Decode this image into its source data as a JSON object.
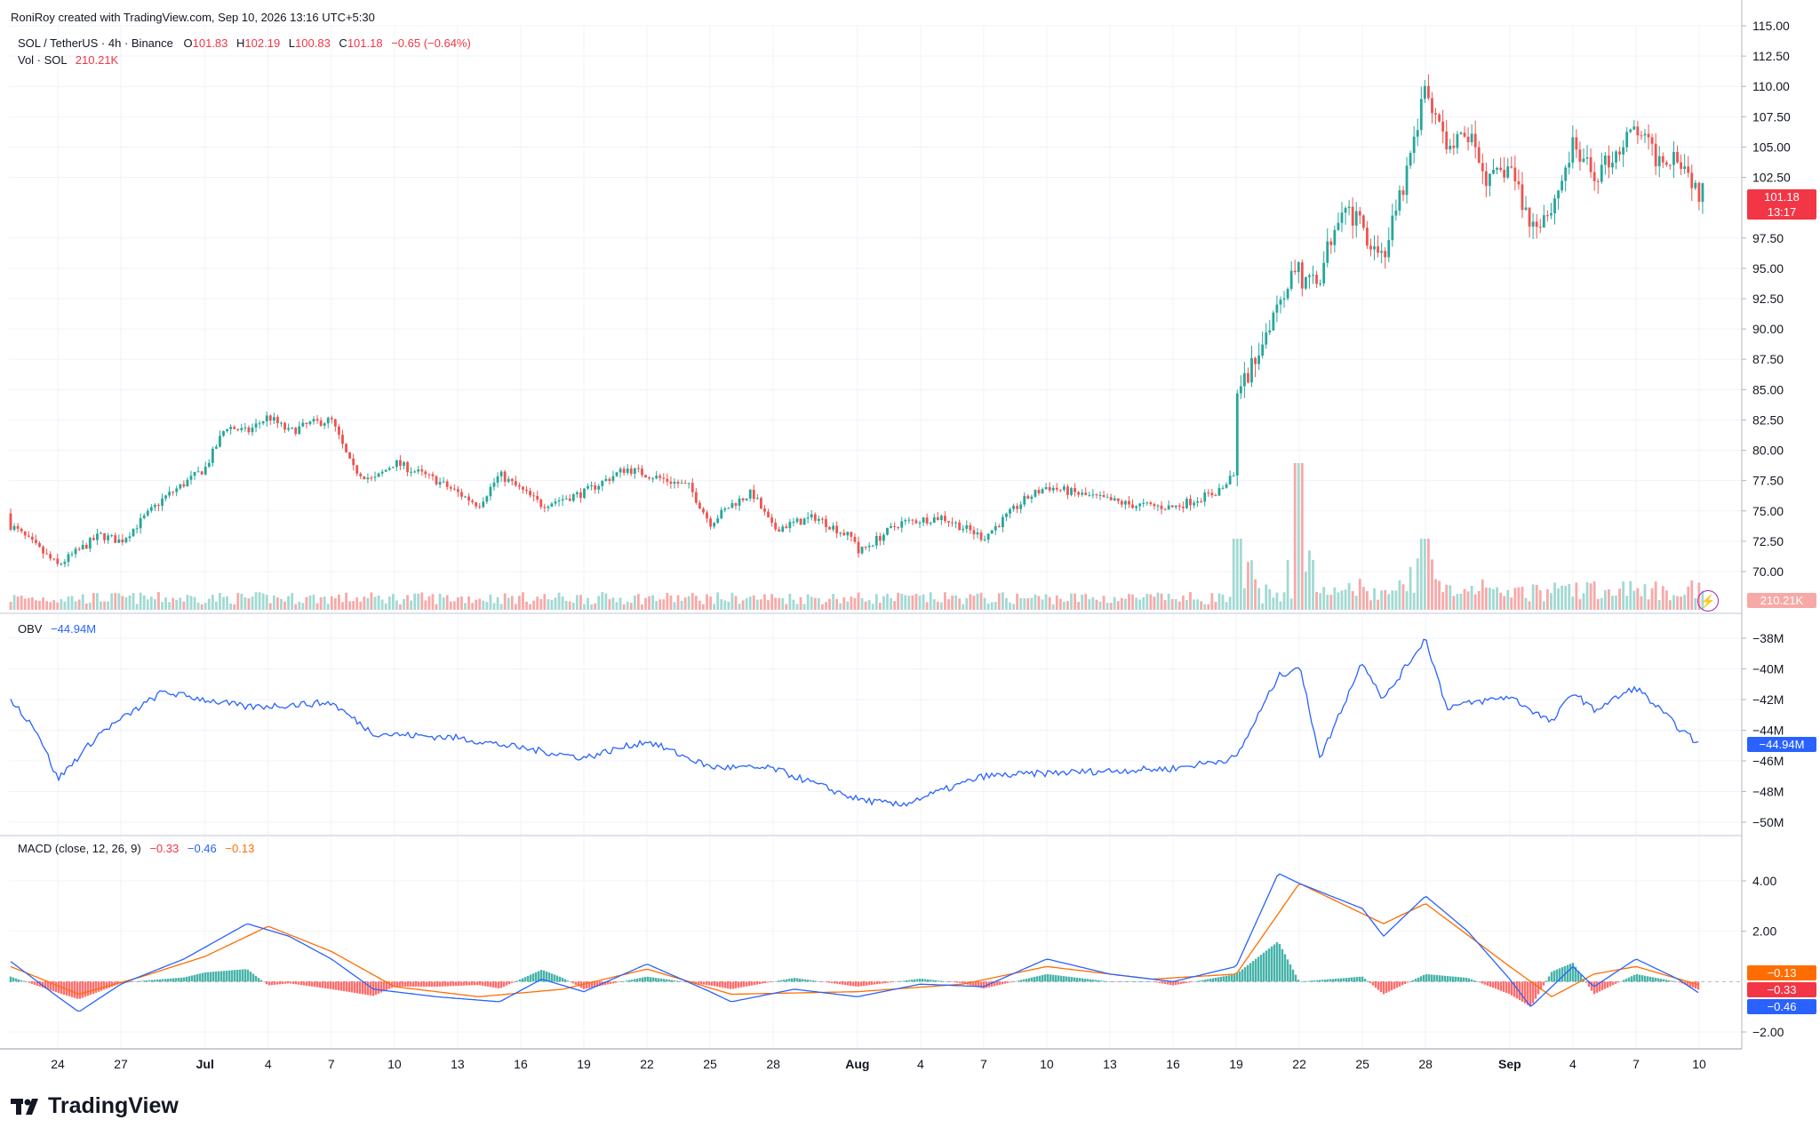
{
  "header": {
    "credit": "RoniRoy created with TradingView.com, Sep 10, 2026 13:16 UTC+5:30",
    "symbol": "SOL / TetherUS · 4h · Binance",
    "ohlc": {
      "o_label": "O",
      "o": "101.83",
      "h_label": "H",
      "h": "102.19",
      "l_label": "L",
      "l": "100.83",
      "c_label": "C",
      "c": "101.18",
      "chg": "−0.65 (−0.64%)"
    },
    "vol_label": "Vol · SOL",
    "vol_value": "210.21K"
  },
  "obv": {
    "label": "OBV",
    "value": "−44.94M"
  },
  "macd": {
    "label": "MACD (close, 12, 26, 9)",
    "hist": "−0.33",
    "macd": "−0.46",
    "signal": "−0.13"
  },
  "price_axis": {
    "ticks": [
      "115.00",
      "112.50",
      "110.00",
      "107.50",
      "105.00",
      "102.50",
      "97.50",
      "95.00",
      "92.50",
      "90.00",
      "87.50",
      "85.00",
      "82.50",
      "80.00",
      "77.50",
      "75.00",
      "72.50",
      "70.00"
    ]
  },
  "price_marker": {
    "value": "101.18",
    "countdown": "13:17"
  },
  "vol_marker": "210.21K",
  "obv_axis": {
    "ticks": [
      "−38M",
      "−40M",
      "−42M",
      "−44M",
      "−46M",
      "−48M",
      "−50M"
    ]
  },
  "obv_marker": "−44.94M",
  "macd_axis": {
    "ticks": [
      "4.00",
      "2.00",
      "−2.00"
    ]
  },
  "macd_markers": [
    "−0.13",
    "−0.33",
    "−0.46"
  ],
  "time_axis": {
    "labels": [
      "24",
      "27",
      "Jul",
      "4",
      "7",
      "10",
      "13",
      "16",
      "19",
      "22",
      "25",
      "28",
      "Aug",
      "4",
      "7",
      "10",
      "13",
      "16",
      "19",
      "22",
      "25",
      "28",
      "Sep",
      "4",
      "7",
      "10"
    ]
  },
  "brand": "TradingView",
  "colors": {
    "up": "#26a69a",
    "down": "#ef5350",
    "obv": "#2962ff",
    "macd": "#2962ff",
    "signal": "#ff6d00",
    "grid": "#f0f3fa"
  },
  "chart_data": {
    "type": "candlestick",
    "title": "SOL / TetherUS · 4h · Binance",
    "ylim": [
      68.5,
      115.5
    ],
    "anchors": [
      {
        "date": "Jun 21",
        "price": 74.8
      },
      {
        "date": "Jun 22",
        "price": 73.5
      },
      {
        "date": "Jun 24",
        "price": 70.5
      },
      {
        "date": "Jun 26",
        "price": 73.0
      },
      {
        "date": "Jun 27",
        "price": 72.5
      },
      {
        "date": "Jun 29",
        "price": 76.0
      },
      {
        "date": "Jul 1",
        "price": 78.5
      },
      {
        "date": "Jul 2",
        "price": 82.0
      },
      {
        "date": "Jul 3",
        "price": 81.5
      },
      {
        "date": "Jul 4",
        "price": 82.8
      },
      {
        "date": "Jul 5",
        "price": 81.5
      },
      {
        "date": "Jul 6",
        "price": 82.2
      },
      {
        "date": "Jul 7",
        "price": 82.5
      },
      {
        "date": "Jul 8",
        "price": 78.5
      },
      {
        "date": "Jul 9",
        "price": 77.5
      },
      {
        "date": "Jul 10",
        "price": 79.0
      },
      {
        "date": "Jul 12",
        "price": 77.5
      },
      {
        "date": "Jul 14",
        "price": 75.5
      },
      {
        "date": "Jul 15",
        "price": 78.0
      },
      {
        "date": "Jul 17",
        "price": 75.5
      },
      {
        "date": "Jul 19",
        "price": 76.5
      },
      {
        "date": "Jul 21",
        "price": 78.5
      },
      {
        "date": "Jul 22",
        "price": 78.0
      },
      {
        "date": "Jul 24",
        "price": 77.0
      },
      {
        "date": "Jul 25",
        "price": 74.0
      },
      {
        "date": "Jul 26",
        "price": 75.5
      },
      {
        "date": "Jul 27",
        "price": 76.5
      },
      {
        "date": "Jul 28",
        "price": 73.5
      },
      {
        "date": "Jul 30",
        "price": 74.5
      },
      {
        "date": "Aug 1",
        "price": 72.5
      },
      {
        "date": "Aug 1",
        "price": 71.5
      },
      {
        "date": "Aug 3",
        "price": 74.0
      },
      {
        "date": "Aug 5",
        "price": 74.5
      },
      {
        "date": "Aug 7",
        "price": 72.8
      },
      {
        "date": "Aug 9",
        "price": 76.0
      },
      {
        "date": "Aug 10",
        "price": 77.0
      },
      {
        "date": "Aug 12",
        "price": 76.2
      },
      {
        "date": "Aug 14",
        "price": 75.5
      },
      {
        "date": "Aug 16",
        "price": 75.3
      },
      {
        "date": "Aug 18",
        "price": 76.5
      },
      {
        "date": "Aug 19",
        "price": 78.0
      },
      {
        "date": "Aug 19",
        "price": 84.0
      },
      {
        "date": "Aug 20",
        "price": 88.0
      },
      {
        "date": "Aug 21",
        "price": 92.5
      },
      {
        "date": "Aug 22",
        "price": 95.5
      },
      {
        "date": "Aug 22",
        "price": 93.5
      },
      {
        "date": "Aug 23",
        "price": 94.5
      },
      {
        "date": "Aug 24",
        "price": 100.5
      },
      {
        "date": "Aug 26",
        "price": 96.0
      },
      {
        "date": "Aug 27",
        "price": 102.0
      },
      {
        "date": "Aug 28",
        "price": 110.0
      },
      {
        "date": "Aug 29",
        "price": 104.5
      },
      {
        "date": "Aug 30",
        "price": 106.0
      },
      {
        "date": "Aug 31",
        "price": 102.0
      },
      {
        "date": "Sep 1",
        "price": 103.5
      },
      {
        "date": "Sep 2",
        "price": 98.5
      },
      {
        "date": "Sep 3",
        "price": 100.0
      },
      {
        "date": "Sep 4",
        "price": 105.0
      },
      {
        "date": "Sep 5",
        "price": 102.5
      },
      {
        "date": "Sep 6",
        "price": 104.5
      },
      {
        "date": "Sep 7",
        "price": 106.5
      },
      {
        "date": "Sep 8",
        "price": 104.0
      },
      {
        "date": "Sep 9",
        "price": 104.5
      },
      {
        "date": "Sep 10",
        "price": 101.2
      }
    ],
    "volume_spikes": [
      {
        "date": "Aug 19",
        "value": "high"
      },
      {
        "date": "Aug 22",
        "value": "max"
      },
      {
        "date": "Aug 28",
        "value": "high"
      }
    ],
    "obv_series": [
      {
        "date": "Jun 21",
        "value": -42.0
      },
      {
        "date": "Jun 23",
        "value": -44.0
      },
      {
        "date": "Jun 24",
        "value": -47.2
      },
      {
        "date": "Jun 26",
        "value": -44.2
      },
      {
        "date": "Jun 29",
        "value": -41.5
      },
      {
        "date": "Jul 3",
        "value": -42.5
      },
      {
        "date": "Jul 7",
        "value": -42.2
      },
      {
        "date": "Jul 9",
        "value": -44.2
      },
      {
        "date": "Jul 13",
        "value": -44.5
      },
      {
        "date": "Jul 19",
        "value": -45.8
      },
      {
        "date": "Jul 22",
        "value": -44.7
      },
      {
        "date": "Jul 25",
        "value": -46.4
      },
      {
        "date": "Jul 28",
        "value": -46.5
      },
      {
        "date": "Aug 1",
        "value": -48.5
      },
      {
        "date": "Aug 3",
        "value": -48.9
      },
      {
        "date": "Aug 7",
        "value": -47.0
      },
      {
        "date": "Aug 10",
        "value": -46.8
      },
      {
        "date": "Aug 16",
        "value": -46.5
      },
      {
        "date": "Aug 19",
        "value": -45.8
      },
      {
        "date": "Aug 21",
        "value": -40.5
      },
      {
        "date": "Aug 22",
        "value": -39.8
      },
      {
        "date": "Aug 23",
        "value": -45.8
      },
      {
        "date": "Aug 25",
        "value": -39.5
      },
      {
        "date": "Aug 26",
        "value": -42.0
      },
      {
        "date": "Aug 28",
        "value": -38.0
      },
      {
        "date": "Aug 29",
        "value": -42.5
      },
      {
        "date": "Sep 1",
        "value": -41.8
      },
      {
        "date": "Sep 3",
        "value": -43.5
      },
      {
        "date": "Sep 4",
        "value": -41.5
      },
      {
        "date": "Sep 5",
        "value": -42.7
      },
      {
        "date": "Sep 7",
        "value": -41.2
      },
      {
        "date": "Sep 9",
        "value": -43.8
      },
      {
        "date": "Sep 10",
        "value": -44.94
      }
    ],
    "macd_series": [
      {
        "date": "Jun 21",
        "value": 0.8
      },
      {
        "date": "Jun 24",
        "value": -0.6
      },
      {
        "date": "Jun 25",
        "value": -1.2
      },
      {
        "date": "Jun 27",
        "value": -0.1
      },
      {
        "date": "Jun 30",
        "value": 0.9
      },
      {
        "date": "Jul 3",
        "value": 2.3
      },
      {
        "date": "Jul 5",
        "value": 1.8
      },
      {
        "date": "Jul 7",
        "value": 0.9
      },
      {
        "date": "Jul 9",
        "value": -0.3
      },
      {
        "date": "Jul 12",
        "value": -0.6
      },
      {
        "date": "Jul 15",
        "value": -0.8
      },
      {
        "date": "Jul 17",
        "value": 0.1
      },
      {
        "date": "Jul 19",
        "value": -0.4
      },
      {
        "date": "Jul 22",
        "value": 0.7
      },
      {
        "date": "Jul 25",
        "value": -0.4
      },
      {
        "date": "Jul 26",
        "value": -0.8
      },
      {
        "date": "Jul 29",
        "value": -0.3
      },
      {
        "date": "Aug 1",
        "value": -0.6
      },
      {
        "date": "Aug 4",
        "value": -0.1
      },
      {
        "date": "Aug 7",
        "value": -0.2
      },
      {
        "date": "Aug 10",
        "value": 0.9
      },
      {
        "date": "Aug 13",
        "value": 0.3
      },
      {
        "date": "Aug 16",
        "value": 0.0
      },
      {
        "date": "Aug 19",
        "value": 0.6
      },
      {
        "date": "Aug 21",
        "value": 4.3
      },
      {
        "date": "Aug 22",
        "value": 3.9
      },
      {
        "date": "Aug 25",
        "value": 2.9
      },
      {
        "date": "Aug 26",
        "value": 1.8
      },
      {
        "date": "Aug 28",
        "value": 3.4
      },
      {
        "date": "Aug 30",
        "value": 2.0
      },
      {
        "date": "Sep 1",
        "value": 0.1
      },
      {
        "date": "Sep 2",
        "value": -1.0
      },
      {
        "date": "Sep 4",
        "value": 0.6
      },
      {
        "date": "Sep 5",
        "value": -0.2
      },
      {
        "date": "Sep 7",
        "value": 0.9
      },
      {
        "date": "Sep 9",
        "value": 0.1
      },
      {
        "date": "Sep 10",
        "value": -0.46
      }
    ],
    "signal_series": [
      {
        "date": "Jun 21",
        "value": 0.6
      },
      {
        "date": "Jun 25",
        "value": -0.5
      },
      {
        "date": "Jun 28",
        "value": 0.2
      },
      {
        "date": "Jul 1",
        "value": 1.0
      },
      {
        "date": "Jul 4",
        "value": 2.2
      },
      {
        "date": "Jul 7",
        "value": 1.2
      },
      {
        "date": "Jul 10",
        "value": -0.2
      },
      {
        "date": "Jul 14",
        "value": -0.6
      },
      {
        "date": "Jul 18",
        "value": -0.3
      },
      {
        "date": "Jul 22",
        "value": 0.5
      },
      {
        "date": "Jul 26",
        "value": -0.5
      },
      {
        "date": "Aug 1",
        "value": -0.4
      },
      {
        "date": "Aug 6",
        "value": -0.1
      },
      {
        "date": "Aug 10",
        "value": 0.6
      },
      {
        "date": "Aug 15",
        "value": 0.1
      },
      {
        "date": "Aug 19",
        "value": 0.3
      },
      {
        "date": "Aug 22",
        "value": 3.9
      },
      {
        "date": "Aug 26",
        "value": 2.3
      },
      {
        "date": "Aug 28",
        "value": 3.1
      },
      {
        "date": "Sep 1",
        "value": 0.6
      },
      {
        "date": "Sep 3",
        "value": -0.6
      },
      {
        "date": "Sep 5",
        "value": 0.3
      },
      {
        "date": "Sep 7",
        "value": 0.6
      },
      {
        "date": "Sep 10",
        "value": -0.13
      }
    ]
  }
}
